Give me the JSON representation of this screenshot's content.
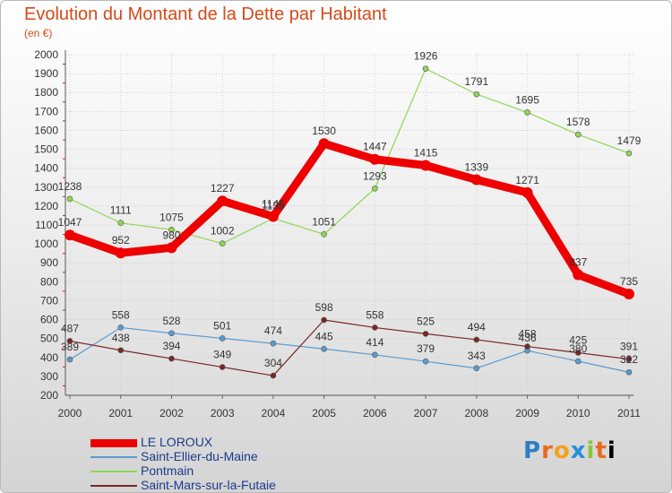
{
  "chart_data": {
    "type": "line",
    "title": "Evolution du Montant de la Dette par Habitant",
    "subtitle": "(en €)",
    "xlabel": "",
    "ylabel": "",
    "ylim": [
      200,
      2000
    ],
    "y_ticks": [
      200,
      300,
      400,
      500,
      600,
      700,
      800,
      900,
      1000,
      1100,
      1200,
      1300,
      1400,
      1500,
      1600,
      1700,
      1800,
      1900,
      2000
    ],
    "categories": [
      "2000",
      "2001",
      "2002",
      "2003",
      "2004",
      "2005",
      "2006",
      "2007",
      "2008",
      "2009",
      "2010",
      "2011"
    ],
    "grid": true,
    "legend_position": "bottom-left",
    "series": [
      {
        "name": "LE LOROUX",
        "color": "#ee0000",
        "values": [
          1047,
          952,
          980,
          1227,
          1145,
          1530,
          1447,
          1415,
          1339,
          1271,
          837,
          735
        ]
      },
      {
        "name": "Saint-Ellier-du-Maine",
        "color": "#5a9bd0",
        "values": [
          389,
          558,
          528,
          501,
          474,
          445,
          414,
          379,
          343,
          436,
          380,
          322
        ]
      },
      {
        "name": "Pontmain",
        "color": "#8fd654",
        "values": [
          1238,
          1111,
          1075,
          1002,
          1135,
          1051,
          1293,
          1926,
          1791,
          1695,
          1578,
          1479
        ]
      },
      {
        "name": "Saint-Mars-sur-la-Futaie",
        "color": "#7a2626",
        "values": [
          487,
          438,
          394,
          349,
          304,
          598,
          558,
          525,
          494,
          458,
          425,
          391
        ]
      }
    ]
  },
  "logo": {
    "letters": [
      "P",
      "r",
      "o",
      "x",
      "i",
      "t",
      "i"
    ],
    "text": "Proxiti"
  }
}
